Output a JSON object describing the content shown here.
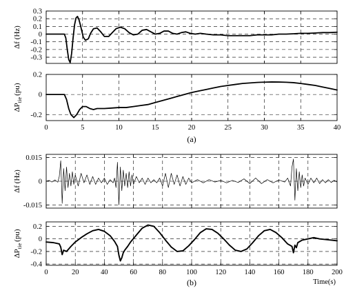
{
  "figure": {
    "caption_a": "(a)",
    "caption_b": "(b)"
  },
  "chart_data": [
    {
      "type": "line",
      "panel": "a-top",
      "ylabel": "Δf (Hz)",
      "xlim": [
        0,
        40
      ],
      "ylim": [
        -0.38,
        0.3
      ],
      "yticks": [
        0.3,
        0.2,
        0.1,
        0,
        -0.1,
        -0.2,
        -0.3
      ],
      "ytick_labels": [
        "0.3",
        "0.2",
        "0.1",
        "0",
        "-0.1",
        "-0.2",
        "-0.3"
      ],
      "xticks": [
        0,
        5,
        10,
        15,
        20,
        25,
        30,
        35,
        40
      ],
      "xtick_labels": [],
      "grid": true,
      "line_width": 1.8,
      "series": [
        {
          "x": [
            0,
            2.5,
            2.7,
            2.9,
            3.1,
            3.3,
            3.5,
            3.7,
            3.9,
            4.1,
            4.3,
            4.5,
            4.7,
            4.9,
            5.1,
            5.4,
            5.8,
            6.1,
            6.5,
            7.0,
            7.5,
            8.0,
            8.6,
            9.1,
            9.6,
            10.2,
            10.8,
            11.4,
            12.0,
            12.6,
            13.2,
            13.8,
            14.4,
            15.0,
            15.6,
            16.2,
            16.8,
            17.4,
            18.0,
            18.6,
            19.2,
            19.8,
            20.5,
            21.2,
            22.0,
            23.0,
            24.0,
            25.0,
            26.0,
            27.0,
            28.0,
            29.0,
            30.0,
            31.0,
            32.0,
            33.0,
            34.0,
            35.0,
            36.0,
            37.0,
            38.0,
            39.0,
            40.0
          ],
          "y": [
            0,
            0,
            -0.05,
            -0.2,
            -0.33,
            -0.37,
            -0.25,
            -0.05,
            0.12,
            0.21,
            0.23,
            0.19,
            0.12,
            0.04,
            -0.04,
            -0.08,
            -0.06,
            0.01,
            0.07,
            0.08,
            0.03,
            -0.03,
            -0.03,
            0.02,
            0.07,
            0.09,
            0.07,
            0.02,
            -0.01,
            0.0,
            0.05,
            0.06,
            0.03,
            0.0,
            0.01,
            0.04,
            0.04,
            0.01,
            0.0,
            0.02,
            0.03,
            0.01,
            0.0,
            0.01,
            0.0,
            -0.01,
            -0.01,
            -0.02,
            -0.02,
            -0.02,
            -0.02,
            -0.01,
            -0.01,
            -0.01,
            0.0,
            0.0,
            0.005,
            0.01,
            0.01,
            0.015,
            0.02,
            0.02,
            0.025
          ]
        }
      ]
    },
    {
      "type": "line",
      "panel": "a-bottom",
      "ylabel": "ΔP_tie (pu)",
      "ylabel_main": "ΔP",
      "ylabel_sub": "tie",
      "ylabel_unit": "(pu)",
      "xlim": [
        0,
        40
      ],
      "ylim": [
        -0.26,
        0.2
      ],
      "yticks": [
        0.2,
        0,
        -0.2
      ],
      "ytick_labels": [
        "0.2",
        "0",
        "-0.2"
      ],
      "xticks": [
        0,
        5,
        10,
        15,
        20,
        25,
        30,
        35,
        40
      ],
      "xtick_labels": [
        "0",
        "5",
        "10",
        "15",
        "20",
        "25",
        "30",
        "35",
        "40"
      ],
      "grid": true,
      "line_width": 1.8,
      "series": [
        {
          "x": [
            0,
            2.5,
            2.8,
            3.1,
            3.4,
            3.8,
            4.2,
            4.6,
            5.0,
            5.5,
            6.0,
            6.5,
            7.0,
            7.5,
            8.0,
            9.0,
            10.0,
            11.0,
            12.0,
            13.0,
            14.0,
            15.0,
            16.0,
            17.0,
            18.0,
            19.0,
            20.0,
            21.0,
            22.0,
            23.0,
            24.0,
            25.0,
            26.0,
            27.0,
            28.0,
            29.0,
            30.0,
            31.0,
            32.0,
            33.0,
            34.0,
            35.0,
            36.0,
            37.0,
            38.0,
            39.0,
            40.0
          ],
          "y": [
            0,
            0,
            -0.05,
            -0.14,
            -0.2,
            -0.23,
            -0.2,
            -0.15,
            -0.12,
            -0.12,
            -0.14,
            -0.15,
            -0.14,
            -0.14,
            -0.14,
            -0.135,
            -0.13,
            -0.13,
            -0.12,
            -0.11,
            -0.1,
            -0.08,
            -0.06,
            -0.04,
            -0.02,
            0.0,
            0.02,
            0.035,
            0.05,
            0.065,
            0.08,
            0.09,
            0.1,
            0.11,
            0.115,
            0.12,
            0.123,
            0.125,
            0.124,
            0.122,
            0.118,
            0.11,
            0.1,
            0.09,
            0.075,
            0.06,
            0.045
          ]
        }
      ]
    },
    {
      "type": "line",
      "panel": "b-top",
      "ylabel": "Δf (Hz)",
      "xlim": [
        0,
        200
      ],
      "ylim": [
        -0.017,
        0.017
      ],
      "yticks": [
        0.015,
        0,
        -0.015
      ],
      "ytick_labels": [
        "0.015",
        "0",
        "-0.015"
      ],
      "xticks": [
        0,
        20,
        40,
        60,
        80,
        100,
        120,
        140,
        160,
        180,
        200
      ],
      "xtick_labels": [],
      "grid": true,
      "line_width": 0.7,
      "series": [
        {
          "x": [
            0,
            2,
            4,
            6,
            8,
            9,
            10,
            11,
            12,
            13,
            14,
            15,
            16,
            17,
            18,
            19,
            20,
            22,
            24,
            26,
            28,
            30,
            32,
            34,
            36,
            38,
            40,
            42,
            44,
            46,
            47,
            48,
            49,
            50,
            51,
            52,
            53,
            54,
            55,
            56,
            57,
            58,
            59,
            60,
            62,
            64,
            66,
            68,
            70,
            72,
            74,
            76,
            78,
            80,
            82,
            84,
            86,
            88,
            90,
            92,
            94,
            96,
            98,
            100,
            104,
            108,
            112,
            116,
            120,
            124,
            128,
            132,
            136,
            140,
            144,
            148,
            152,
            156,
            160,
            164,
            166,
            168,
            169,
            170,
            171,
            172,
            173,
            174,
            175,
            176,
            177,
            178,
            180,
            182,
            184,
            186,
            188,
            190,
            192,
            194,
            196,
            198,
            200
          ],
          "y": [
            0,
            0.0005,
            -0.0005,
            0.0008,
            -0.0006,
            0.003,
            0.013,
            -0.014,
            0.008,
            -0.006,
            0.009,
            -0.004,
            0.005,
            -0.003,
            0.006,
            -0.002,
            0.004,
            -0.003,
            0.005,
            -0.001,
            0.004,
            -0.002,
            0.003,
            -0.002,
            0.002,
            -0.001,
            0.002,
            -0.002,
            0.001,
            -0.001,
            0.002,
            -0.004,
            0.012,
            -0.015,
            0.009,
            -0.006,
            0.007,
            -0.003,
            0.005,
            -0.004,
            0.006,
            -0.003,
            0.004,
            -0.002,
            0.003,
            -0.001,
            0.002,
            -0.002,
            0.002,
            -0.001,
            0.001,
            -0.001,
            0.002,
            -0.003,
            0.005,
            -0.004,
            0.005,
            -0.002,
            0.004,
            -0.003,
            0.003,
            -0.002,
            0.002,
            -0.001,
            0.001,
            -0.001,
            0.001,
            -0.0005,
            0.0005,
            -0.001,
            0.0005,
            -0.0008,
            0.0015,
            -0.0015,
            0.002,
            -0.0015,
            0.001,
            -0.001,
            0.0008,
            -0.0005,
            0.002,
            -0.003,
            0.009,
            0.014,
            -0.012,
            0.008,
            -0.006,
            0.006,
            -0.004,
            0.004,
            -0.003,
            0.002,
            -0.002,
            0.002,
            -0.001,
            0.002,
            -0.0015,
            0.001,
            -0.001,
            0.001,
            -0.0008,
            0.0006,
            -0.0005
          ]
        }
      ]
    },
    {
      "type": "line",
      "panel": "b-bottom",
      "ylabel": "ΔP_tie (pu)",
      "ylabel_main": "ΔP",
      "ylabel_sub": "tie",
      "ylabel_unit": "(pu)",
      "xlabel": "Time(s)",
      "xlim": [
        0,
        200
      ],
      "ylim": [
        -0.42,
        0.27
      ],
      "yticks": [
        0.2,
        0,
        -0.2,
        -0.4
      ],
      "ytick_labels": [
        "0.2",
        "0",
        "-0.2",
        "-0.4"
      ],
      "xticks": [
        0,
        20,
        40,
        60,
        80,
        100,
        120,
        140,
        160,
        180,
        200
      ],
      "xtick_labels": [
        "0",
        "20",
        "40",
        "60",
        "80",
        "100",
        "120",
        "140",
        "160",
        "180",
        "200"
      ],
      "grid": true,
      "line_width": 1.9,
      "series": [
        {
          "x": [
            0,
            5,
            9,
            10,
            11,
            12,
            14,
            17,
            20,
            24,
            28,
            32,
            36,
            40,
            44,
            47,
            49,
            50,
            51,
            52,
            53,
            54,
            56,
            58,
            62,
            66,
            70,
            74,
            78,
            82,
            86,
            90,
            94,
            98,
            102,
            106,
            110,
            114,
            118,
            122,
            126,
            130,
            134,
            138,
            142,
            146,
            150,
            154,
            158,
            162,
            166,
            169,
            170,
            171,
            172,
            173,
            176,
            180,
            184,
            188,
            192,
            196,
            200
          ],
          "y": [
            -0.05,
            -0.06,
            -0.08,
            -0.13,
            -0.25,
            -0.18,
            -0.2,
            -0.12,
            -0.05,
            0.02,
            0.08,
            0.13,
            0.15,
            0.12,
            0.05,
            -0.04,
            -0.12,
            -0.26,
            -0.35,
            -0.3,
            -0.22,
            -0.18,
            -0.12,
            -0.05,
            0.06,
            0.17,
            0.22,
            0.2,
            0.1,
            -0.02,
            -0.13,
            -0.2,
            -0.19,
            -0.11,
            -0.01,
            0.1,
            0.16,
            0.15,
            0.09,
            0.0,
            -0.1,
            -0.18,
            -0.2,
            -0.16,
            -0.06,
            0.05,
            0.13,
            0.15,
            0.1,
            0.02,
            -0.08,
            -0.12,
            -0.22,
            -0.1,
            -0.14,
            -0.06,
            -0.02,
            0.0,
            0.02,
            0.0,
            -0.01,
            -0.02,
            -0.03
          ]
        }
      ]
    }
  ]
}
